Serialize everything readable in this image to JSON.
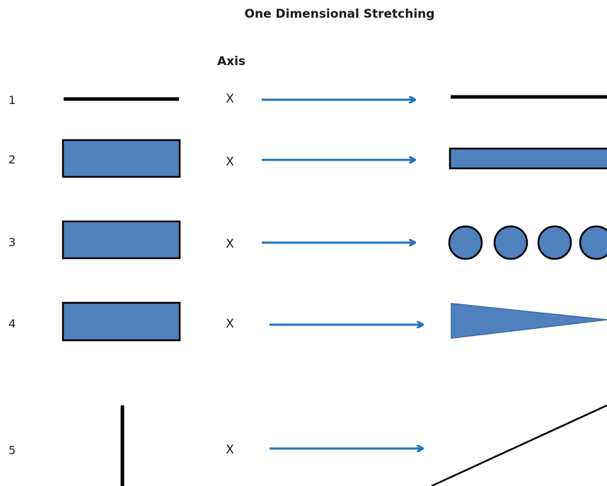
{
  "title": "One Dimensional Stretching",
  "axis_header": "Axis",
  "colors": {
    "shape_fill": "#4f81bd",
    "arrow": "#1e73be",
    "stroke": "#000000"
  },
  "rows": [
    {
      "number": "1",
      "axis": "X",
      "source_shape": "horizontal-line",
      "result_shape": "long-horizontal-line"
    },
    {
      "number": "2",
      "axis": "X",
      "source_shape": "rectangle",
      "result_shape": "stretched-rectangle"
    },
    {
      "number": "3",
      "axis": "X",
      "source_shape": "rectangle",
      "result_shape": "row-of-circles"
    },
    {
      "number": "4",
      "axis": "X",
      "source_shape": "rectangle",
      "result_shape": "triangle"
    },
    {
      "number": "5",
      "axis": "X",
      "source_shape": "vertical-line",
      "result_shape": "diagonal-line"
    }
  ]
}
